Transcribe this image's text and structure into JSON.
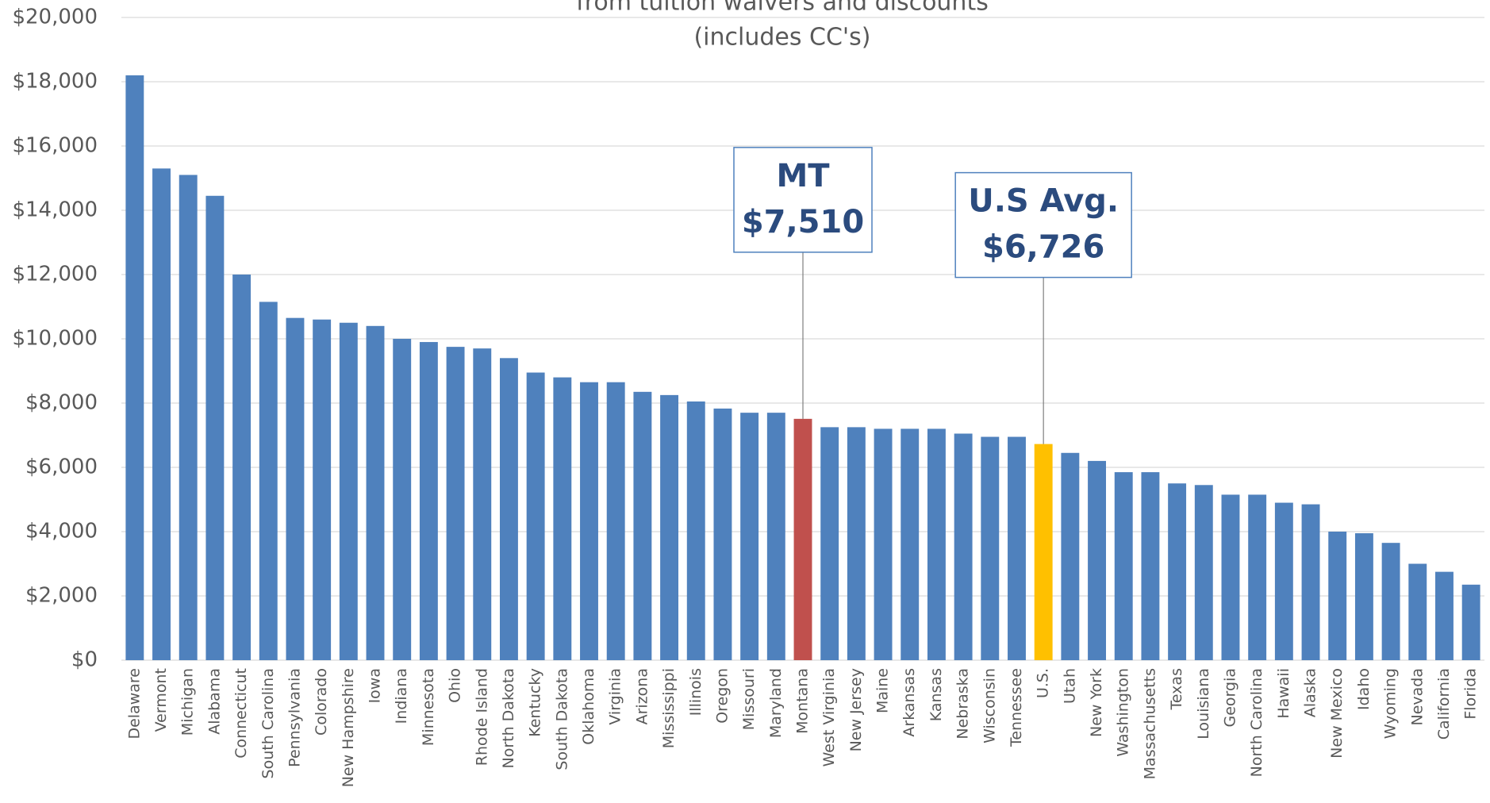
{
  "chart_data": {
    "type": "bar",
    "title": "from tuition waivers and discounts",
    "subtitle": "(includes CC's)",
    "categories": [
      "Delaware",
      "Vermont",
      "Michigan",
      "Alabama",
      "Connecticut",
      "South Carolina",
      "Pennsylvania",
      "Colorado",
      "New Hampshire",
      "Iowa",
      "Indiana",
      "Minnesota",
      "Ohio",
      "Rhode Island",
      "North Dakota",
      "Kentucky",
      "South Dakota",
      "Oklahoma",
      "Virginia",
      "Arizona",
      "Mississippi",
      "Illinois",
      "Oregon",
      "Missouri",
      "Maryland",
      "Montana",
      "West Virginia",
      "New Jersey",
      "Maine",
      "Arkansas",
      "Kansas",
      "Nebraska",
      "Wisconsin",
      "Tennessee",
      "U.S.",
      "Utah",
      "New York",
      "Washington",
      "Massachusetts",
      "Texas",
      "Louisiana",
      "Georgia",
      "North Carolina",
      "Hawaii",
      "Alaska",
      "New Mexico",
      "Idaho",
      "Wyoming",
      "Nevada",
      "California",
      "Florida"
    ],
    "values": [
      18200,
      15300,
      15100,
      14450,
      12000,
      11150,
      10650,
      10600,
      10500,
      10400,
      10000,
      9900,
      9750,
      9700,
      9400,
      8950,
      8800,
      8650,
      8650,
      8350,
      8250,
      8050,
      7830,
      7700,
      7700,
      7510,
      7250,
      7250,
      7200,
      7200,
      7200,
      7050,
      6950,
      6950,
      6726,
      6450,
      6200,
      5850,
      5850,
      5500,
      5450,
      5150,
      5150,
      4900,
      4850,
      4000,
      3950,
      3650,
      3000,
      2750,
      2350
    ],
    "color": "#4f81bd",
    "annotations": [
      {
        "index": 25,
        "color": "#c0504d",
        "lines": [
          "MT",
          "$7,510"
        ]
      },
      {
        "index": 34,
        "color": "#ffc000",
        "lines": [
          "U.S Avg.",
          "$6,726"
        ]
      }
    ],
    "ylim": [
      0,
      20000
    ],
    "yticks": [
      {
        "value": 0,
        "label": "$0"
      },
      {
        "value": 2000,
        "label": "$2,000"
      },
      {
        "value": 4000,
        "label": "$4,000"
      },
      {
        "value": 6000,
        "label": "$6,000"
      },
      {
        "value": 8000,
        "label": "$8,000"
      },
      {
        "value": 10000,
        "label": "$10,000"
      },
      {
        "value": 12000,
        "label": "$12,000"
      },
      {
        "value": 14000,
        "label": "$14,000"
      },
      {
        "value": 16000,
        "label": "$16,000"
      },
      {
        "value": 18000,
        "label": "$18,000"
      },
      {
        "value": 20000,
        "label": "$20,000"
      }
    ],
    "grid": true
  }
}
